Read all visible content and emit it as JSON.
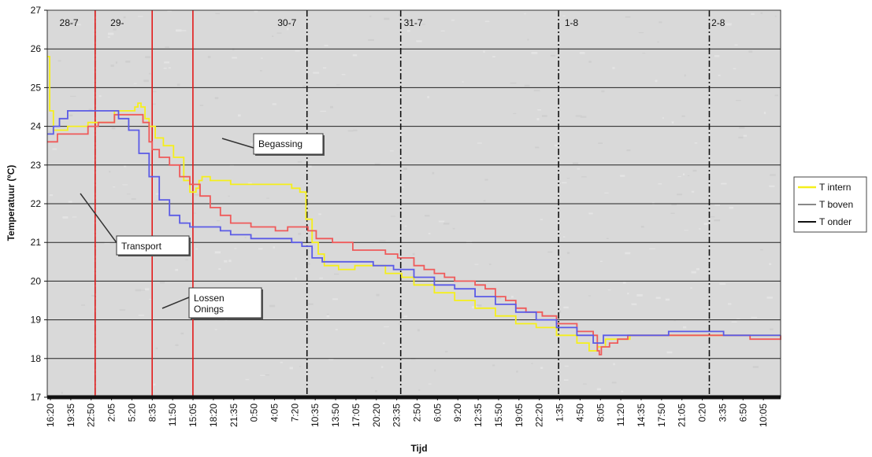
{
  "chart_data": {
    "type": "line",
    "title": "",
    "xlabel": "Tijd",
    "ylabel": "Temperatuur (ºC)",
    "ylim": [
      17,
      27
    ],
    "yticks": [
      17,
      18,
      19,
      20,
      21,
      22,
      23,
      24,
      25,
      26,
      27
    ],
    "grid": true,
    "legend_position": "right",
    "x_tick_labels": [
      "16:20",
      "19:35",
      "22:50",
      "2:05",
      "5:20",
      "8:35",
      "11:50",
      "15:05",
      "18:20",
      "21:35",
      "0:50",
      "4:05",
      "7:20",
      "10:35",
      "13:50",
      "17:05",
      "20:20",
      "23:35",
      "2:50",
      "6:05",
      "9:20",
      "12:35",
      "15:50",
      "19:05",
      "22:20",
      "1:35",
      "4:50",
      "8:05",
      "11:20",
      "14:35",
      "17:50",
      "21:05",
      "0:20",
      "3:35",
      "6:50",
      "10:05"
    ],
    "day_labels": [
      {
        "text": "28-7",
        "index": 0.6
      },
      {
        "text": "29-",
        "index": 3.1
      },
      {
        "text": "30-7",
        "index": 11.3
      },
      {
        "text": "31-7",
        "index": 17.5
      },
      {
        "text": "1-8",
        "index": 25.4
      },
      {
        "text": "2-8",
        "index": 32.6
      }
    ],
    "day_boundaries": [
      2.35,
      25.1,
      32.5,
      12.75,
      17.35
    ],
    "events": [
      2.35,
      5.15,
      7.15
    ],
    "annotations": [
      {
        "text": "Begassing",
        "anchor_index": 7.0,
        "anchor_y": 23.6
      },
      {
        "text": "Transport",
        "anchor_index": 1.35,
        "anchor_y": 22.2
      },
      {
        "text": "Lossen",
        "text2": "Onings",
        "anchor_index": 4.45,
        "anchor_y": 18.9
      }
    ],
    "series": [
      {
        "name": "T intern",
        "color": "#f5ef1b",
        "points": [
          [
            0,
            25.8
          ],
          [
            0.12,
            24.4
          ],
          [
            0.3,
            23.9
          ],
          [
            1,
            24.0
          ],
          [
            2,
            24.1
          ],
          [
            3.1,
            24.1
          ],
          [
            3.3,
            24.4
          ],
          [
            4,
            24.4
          ],
          [
            4.3,
            24.5
          ],
          [
            4.45,
            24.6
          ],
          [
            4.6,
            24.5
          ],
          [
            4.8,
            24.2
          ],
          [
            5,
            24.0
          ],
          [
            5.3,
            23.7
          ],
          [
            5.7,
            23.5
          ],
          [
            6.2,
            23.2
          ],
          [
            6.7,
            22.6
          ],
          [
            7,
            22.3
          ],
          [
            7.3,
            22.4
          ],
          [
            7.45,
            22.6
          ],
          [
            7.6,
            22.7
          ],
          [
            8,
            22.6
          ],
          [
            8.6,
            22.6
          ],
          [
            9,
            22.5
          ],
          [
            10,
            22.5
          ],
          [
            11,
            22.5
          ],
          [
            12,
            22.4
          ],
          [
            12.4,
            22.3
          ],
          [
            12.7,
            21.6
          ],
          [
            13,
            21.0
          ],
          [
            13.3,
            20.7
          ],
          [
            13.6,
            20.4
          ],
          [
            14.3,
            20.3
          ],
          [
            15.1,
            20.4
          ],
          [
            16,
            20.4
          ],
          [
            16.6,
            20.2
          ],
          [
            17.4,
            20.1
          ],
          [
            18,
            19.9
          ],
          [
            19,
            19.7
          ],
          [
            20,
            19.5
          ],
          [
            21,
            19.3
          ],
          [
            22,
            19.1
          ],
          [
            23,
            18.9
          ],
          [
            24,
            18.8
          ],
          [
            25,
            18.6
          ],
          [
            26,
            18.4
          ],
          [
            26.6,
            18.2
          ],
          [
            27,
            18.3
          ],
          [
            27.4,
            18.5
          ],
          [
            28.4,
            18.5
          ],
          [
            28.6,
            18.6
          ],
          [
            36,
            18.6
          ]
        ]
      },
      {
        "name": "T boven",
        "color": "#ef5a5a",
        "points": [
          [
            0,
            23.6
          ],
          [
            0.5,
            23.8
          ],
          [
            1,
            23.8
          ],
          [
            2,
            24.0
          ],
          [
            2.5,
            24.1
          ],
          [
            3.3,
            24.3
          ],
          [
            4.4,
            24.3
          ],
          [
            4.7,
            24.1
          ],
          [
            5.0,
            23.6
          ],
          [
            5.15,
            23.4
          ],
          [
            5.5,
            23.2
          ],
          [
            6,
            23.0
          ],
          [
            6.5,
            22.7
          ],
          [
            7,
            22.5
          ],
          [
            7.5,
            22.2
          ],
          [
            8,
            21.9
          ],
          [
            8.5,
            21.7
          ],
          [
            9,
            21.5
          ],
          [
            9.6,
            21.5
          ],
          [
            10,
            21.4
          ],
          [
            10.5,
            21.4
          ],
          [
            11.2,
            21.3
          ],
          [
            11.5,
            21.3
          ],
          [
            11.8,
            21.4
          ],
          [
            12.5,
            21.4
          ],
          [
            12.8,
            21.3
          ],
          [
            13.2,
            21.1
          ],
          [
            14,
            21.0
          ],
          [
            15,
            20.8
          ],
          [
            16,
            20.8
          ],
          [
            16.6,
            20.7
          ],
          [
            17.2,
            20.6
          ],
          [
            18,
            20.4
          ],
          [
            18.5,
            20.3
          ],
          [
            19,
            20.2
          ],
          [
            19.5,
            20.1
          ],
          [
            20,
            20.0
          ],
          [
            21,
            19.9
          ],
          [
            21.5,
            19.8
          ],
          [
            22,
            19.6
          ],
          [
            22.5,
            19.5
          ],
          [
            23,
            19.3
          ],
          [
            23.5,
            19.2
          ],
          [
            24.3,
            19.1
          ],
          [
            25,
            18.9
          ],
          [
            25.5,
            18.9
          ],
          [
            26,
            18.7
          ],
          [
            26.5,
            18.7
          ],
          [
            26.8,
            18.6
          ],
          [
            27,
            18.2
          ],
          [
            27.1,
            18.1
          ],
          [
            27.2,
            18.3
          ],
          [
            27.6,
            18.4
          ],
          [
            28,
            18.5
          ],
          [
            28.5,
            18.6
          ],
          [
            34,
            18.6
          ],
          [
            34.5,
            18.5
          ],
          [
            35,
            18.5
          ],
          [
            36,
            18.6
          ]
        ]
      },
      {
        "name": "T onder",
        "color": "#5b5be6",
        "points": [
          [
            0,
            23.8
          ],
          [
            0.3,
            24.0
          ],
          [
            0.6,
            24.2
          ],
          [
            1,
            24.4
          ],
          [
            1.5,
            24.4
          ],
          [
            2,
            24.4
          ],
          [
            2.8,
            24.4
          ],
          [
            3.5,
            24.2
          ],
          [
            4,
            23.9
          ],
          [
            4.5,
            23.3
          ],
          [
            5,
            22.7
          ],
          [
            5.5,
            22.1
          ],
          [
            6,
            21.7
          ],
          [
            6.5,
            21.5
          ],
          [
            7,
            21.4
          ],
          [
            8,
            21.4
          ],
          [
            8.5,
            21.3
          ],
          [
            9,
            21.2
          ],
          [
            10,
            21.1
          ],
          [
            11,
            21.1
          ],
          [
            12,
            21.0
          ],
          [
            12.5,
            20.9
          ],
          [
            13,
            20.6
          ],
          [
            13.5,
            20.5
          ],
          [
            14,
            20.5
          ],
          [
            15,
            20.5
          ],
          [
            16,
            20.4
          ],
          [
            17,
            20.3
          ],
          [
            18,
            20.1
          ],
          [
            19,
            19.9
          ],
          [
            20,
            19.8
          ],
          [
            21,
            19.6
          ],
          [
            22,
            19.4
          ],
          [
            23,
            19.2
          ],
          [
            24,
            19.0
          ],
          [
            25,
            18.8
          ],
          [
            26,
            18.6
          ],
          [
            26.8,
            18.4
          ],
          [
            27,
            18.4
          ],
          [
            27.3,
            18.6
          ],
          [
            28,
            18.6
          ],
          [
            29,
            18.6
          ],
          [
            30,
            18.6
          ],
          [
            30.5,
            18.7
          ],
          [
            31,
            18.7
          ],
          [
            33,
            18.7
          ],
          [
            33.2,
            18.6
          ],
          [
            36,
            18.6
          ]
        ]
      }
    ]
  }
}
